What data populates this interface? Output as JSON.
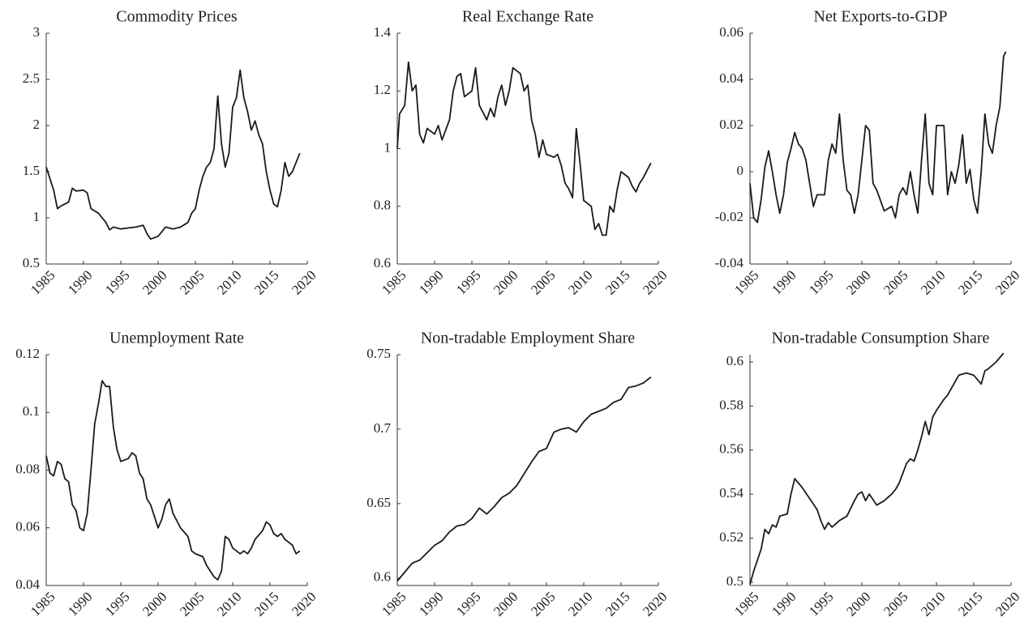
{
  "chart_data": [
    {
      "type": "line",
      "title": "Commodity Prices",
      "color": "#1a1a1a",
      "x": [
        1985,
        1986,
        1986.5,
        1987,
        1988,
        1988.5,
        1989,
        1990,
        1990.5,
        1991,
        1992,
        1993,
        1993.5,
        1994,
        1995,
        1996,
        1997,
        1998,
        1998.5,
        1999,
        2000,
        2001,
        2002,
        2003,
        2004,
        2004.5,
        2005,
        2005.5,
        2006,
        2006.5,
        2007,
        2007.5,
        2008,
        2008.5,
        2009,
        2009.5,
        2010,
        2010.5,
        2011,
        2011.5,
        2012,
        2012.5,
        2013,
        2013.5,
        2014,
        2014.5,
        2015,
        2015.5,
        2016,
        2016.5,
        2017,
        2017.5,
        2018,
        2018.5,
        2019
      ],
      "values": [
        1.55,
        1.3,
        1.1,
        1.13,
        1.17,
        1.32,
        1.29,
        1.3,
        1.27,
        1.1,
        1.05,
        0.95,
        0.87,
        0.9,
        0.88,
        0.89,
        0.9,
        0.92,
        0.83,
        0.77,
        0.8,
        0.9,
        0.88,
        0.9,
        0.95,
        1.05,
        1.1,
        1.3,
        1.45,
        1.55,
        1.6,
        1.75,
        2.32,
        1.8,
        1.55,
        1.7,
        2.2,
        2.3,
        2.6,
        2.3,
        2.15,
        1.95,
        2.05,
        1.9,
        1.8,
        1.5,
        1.3,
        1.15,
        1.12,
        1.3,
        1.6,
        1.45,
        1.5,
        1.6,
        1.7
      ],
      "xlim": [
        1985,
        2020
      ],
      "xticks": [
        1985,
        1990,
        1995,
        2000,
        2005,
        2010,
        2015,
        2020
      ],
      "ylim": [
        0.5,
        3
      ],
      "yticks": [
        0.5,
        1,
        1.5,
        2,
        2.5,
        3
      ]
    },
    {
      "type": "line",
      "title": "Real Exchange Rate",
      "color": "#1a1a1a",
      "x": [
        1985,
        1985.3,
        1986,
        1986.5,
        1987,
        1987.5,
        1988,
        1988.5,
        1989,
        1990,
        1990.5,
        1991,
        1992,
        1992.5,
        1993,
        1993.5,
        1994,
        1995,
        1995.5,
        1996,
        1997,
        1997.5,
        1998,
        1998.5,
        1999,
        1999.5,
        2000,
        2000.5,
        2001,
        2001.5,
        2002,
        2002.5,
        2003,
        2003.5,
        2004,
        2004.5,
        2005,
        2006,
        2006.5,
        2007,
        2007.5,
        2008,
        2008.5,
        2009,
        2009.5,
        2010,
        2011,
        2011.5,
        2012,
        2012.5,
        2013,
        2013.5,
        2014,
        2014.5,
        2015,
        2016,
        2016.5,
        2017,
        2017.5,
        2018,
        2019
      ],
      "values": [
        1.0,
        1.12,
        1.15,
        1.3,
        1.2,
        1.22,
        1.05,
        1.02,
        1.07,
        1.05,
        1.08,
        1.03,
        1.1,
        1.2,
        1.25,
        1.26,
        1.18,
        1.2,
        1.28,
        1.15,
        1.1,
        1.14,
        1.11,
        1.18,
        1.22,
        1.15,
        1.2,
        1.28,
        1.27,
        1.26,
        1.2,
        1.22,
        1.1,
        1.05,
        0.97,
        1.03,
        0.98,
        0.97,
        0.98,
        0.94,
        0.88,
        0.86,
        0.83,
        1.07,
        0.95,
        0.82,
        0.8,
        0.72,
        0.74,
        0.7,
        0.7,
        0.8,
        0.78,
        0.86,
        0.92,
        0.9,
        0.87,
        0.85,
        0.88,
        0.9,
        0.95
      ],
      "xlim": [
        1985,
        2020
      ],
      "xticks": [
        1985,
        1990,
        1995,
        2000,
        2005,
        2010,
        2015,
        2020
      ],
      "ylim": [
        0.6,
        1.4
      ],
      "yticks": [
        0.6,
        0.8,
        1,
        1.2,
        1.4
      ]
    },
    {
      "type": "line",
      "title": "Net Exports-to-GDP",
      "color": "#1a1a1a",
      "x": [
        1985,
        1985.5,
        1986,
        1986.5,
        1987,
        1987.5,
        1988,
        1988.5,
        1989,
        1989.5,
        1990,
        1990.5,
        1991,
        1991.5,
        1992,
        1992.5,
        1993,
        1993.5,
        1994,
        1995,
        1995.5,
        1996,
        1996.5,
        1997,
        1997.5,
        1998,
        1998.5,
        1999,
        1999.5,
        2000,
        2000.5,
        2001,
        2001.5,
        2002,
        2003,
        2004,
        2004.5,
        2005,
        2005.5,
        2006,
        2006.5,
        2007,
        2007.5,
        2008,
        2008.5,
        2009,
        2009.5,
        2010,
        2010.5,
        2011,
        2011.5,
        2012,
        2012.5,
        2013,
        2013.5,
        2014,
        2014.5,
        2015,
        2015.5,
        2016,
        2016.5,
        2017,
        2017.5,
        2018,
        2018.5,
        2019,
        2019.3
      ],
      "values": [
        -0.005,
        -0.02,
        -0.022,
        -0.012,
        0.002,
        0.009,
        0,
        -0.01,
        -0.018,
        -0.01,
        0.004,
        0.01,
        0.017,
        0.012,
        0.01,
        0.005,
        -0.005,
        -0.015,
        -0.01,
        -0.01,
        0.005,
        0.012,
        0.008,
        0.025,
        0.005,
        -0.008,
        -0.01,
        -0.018,
        -0.01,
        0.005,
        0.02,
        0.018,
        -0.005,
        -0.008,
        -0.017,
        -0.015,
        -0.02,
        -0.01,
        -0.007,
        -0.01,
        0,
        -0.01,
        -0.018,
        0.005,
        0.025,
        -0.005,
        -0.01,
        0.02,
        0.02,
        0.02,
        -0.01,
        0,
        -0.005,
        0.003,
        0.016,
        -0.005,
        0.001,
        -0.012,
        -0.018,
        0,
        0.025,
        0.012,
        0.008,
        0.02,
        0.028,
        0.05,
        0.052
      ],
      "xlim": [
        1985,
        2020
      ],
      "xticks": [
        1985,
        1990,
        1995,
        2000,
        2005,
        2010,
        2015,
        2020
      ],
      "ylim": [
        -0.04,
        0.06
      ],
      "yticks": [
        -0.04,
        -0.02,
        0,
        0.02,
        0.04,
        0.06
      ]
    },
    {
      "type": "line",
      "title": "Unemployment Rate",
      "color": "#1a1a1a",
      "x": [
        1985,
        1985.5,
        1986,
        1986.5,
        1987,
        1987.5,
        1988,
        1988.5,
        1989,
        1989.5,
        1990,
        1990.5,
        1991,
        1991.5,
        1992,
        1992.5,
        1993,
        1993.5,
        1994,
        1994.5,
        1995,
        1996,
        1996.5,
        1997,
        1997.5,
        1998,
        1998.5,
        1999,
        2000,
        2000.5,
        2001,
        2001.5,
        2002,
        2003,
        2004,
        2004.5,
        2005,
        2006,
        2006.5,
        2007,
        2007.5,
        2008,
        2008.5,
        2009,
        2009.5,
        2010,
        2011,
        2011.5,
        2012,
        2012.5,
        2013,
        2014,
        2014.5,
        2015,
        2015.5,
        2016,
        2016.5,
        2017,
        2017.5,
        2018,
        2018.5,
        2019
      ],
      "values": [
        0.085,
        0.079,
        0.078,
        0.083,
        0.082,
        0.077,
        0.076,
        0.068,
        0.066,
        0.06,
        0.059,
        0.065,
        0.08,
        0.096,
        0.103,
        0.111,
        0.109,
        0.109,
        0.095,
        0.087,
        0.083,
        0.084,
        0.086,
        0.085,
        0.079,
        0.077,
        0.07,
        0.068,
        0.06,
        0.063,
        0.068,
        0.07,
        0.065,
        0.06,
        0.057,
        0.052,
        0.051,
        0.05,
        0.047,
        0.045,
        0.043,
        0.042,
        0.045,
        0.057,
        0.056,
        0.053,
        0.051,
        0.052,
        0.051,
        0.053,
        0.056,
        0.059,
        0.062,
        0.061,
        0.058,
        0.057,
        0.058,
        0.056,
        0.055,
        0.054,
        0.051,
        0.052
      ],
      "xlim": [
        1985,
        2020
      ],
      "xticks": [
        1985,
        1990,
        1995,
        2000,
        2005,
        2010,
        2015,
        2020
      ],
      "ylim": [
        0.04,
        0.12
      ],
      "yticks": [
        0.04,
        0.06,
        0.08,
        0.1,
        0.12
      ]
    },
    {
      "type": "line",
      "title": "Non-tradable Employment Share",
      "color": "#1a1a1a",
      "x": [
        1985,
        1986,
        1987,
        1988,
        1989,
        1990,
        1991,
        1992,
        1993,
        1994,
        1995,
        1996,
        1997,
        1998,
        1999,
        2000,
        2001,
        2002,
        2003,
        2004,
        2005,
        2006,
        2007,
        2008,
        2009,
        2010,
        2011,
        2012,
        2013,
        2014,
        2015,
        2016,
        2017,
        2018,
        2019
      ],
      "values": [
        0.598,
        0.604,
        0.61,
        0.612,
        0.617,
        0.622,
        0.625,
        0.631,
        0.635,
        0.636,
        0.64,
        0.647,
        0.643,
        0.648,
        0.654,
        0.657,
        0.662,
        0.67,
        0.678,
        0.685,
        0.687,
        0.698,
        0.7,
        0.701,
        0.698,
        0.705,
        0.71,
        0.712,
        0.714,
        0.718,
        0.72,
        0.728,
        0.729,
        0.731,
        0.735
      ],
      "xlim": [
        1985,
        2020
      ],
      "xticks": [
        1985,
        1990,
        1995,
        2000,
        2005,
        2010,
        2015,
        2020
      ],
      "ylim": [
        0.595,
        0.75
      ],
      "yticks": [
        0.6,
        0.65,
        0.7,
        0.75
      ]
    },
    {
      "type": "line",
      "title": "Non-tradable Consumption Share",
      "color": "#1a1a1a",
      "x": [
        1985,
        1985.5,
        1986,
        1986.5,
        1987,
        1987.5,
        1988,
        1988.5,
        1989,
        1990,
        1990.5,
        1991,
        1991.5,
        1992,
        1993,
        1994,
        1994.5,
        1995,
        1995.5,
        1996,
        1997,
        1998,
        1999,
        1999.5,
        2000,
        2000.5,
        2001,
        2002,
        2003,
        2004,
        2004.5,
        2005,
        2006,
        2006.5,
        2007,
        2007.5,
        2008,
        2008.5,
        2009,
        2009.5,
        2010,
        2011,
        2011.5,
        2012,
        2013,
        2014,
        2015,
        2016,
        2016.5,
        2017,
        2018,
        2019
      ],
      "values": [
        0.499,
        0.505,
        0.51,
        0.515,
        0.524,
        0.522,
        0.526,
        0.525,
        0.53,
        0.531,
        0.54,
        0.547,
        0.545,
        0.543,
        0.538,
        0.533,
        0.528,
        0.524,
        0.527,
        0.525,
        0.528,
        0.53,
        0.537,
        0.54,
        0.541,
        0.537,
        0.54,
        0.535,
        0.537,
        0.54,
        0.542,
        0.545,
        0.554,
        0.556,
        0.555,
        0.56,
        0.566,
        0.573,
        0.567,
        0.575,
        0.578,
        0.583,
        0.585,
        0.588,
        0.594,
        0.595,
        0.594,
        0.59,
        0.596,
        0.597,
        0.6,
        0.604
      ],
      "xlim": [
        1985,
        2020
      ],
      "xticks": [
        1985,
        1990,
        1995,
        2000,
        2005,
        2010,
        2015,
        2020
      ],
      "ylim": [
        0.4985,
        0.6033
      ],
      "yticks": [
        0.5,
        0.52,
        0.54,
        0.56,
        0.58,
        0.6
      ]
    }
  ]
}
